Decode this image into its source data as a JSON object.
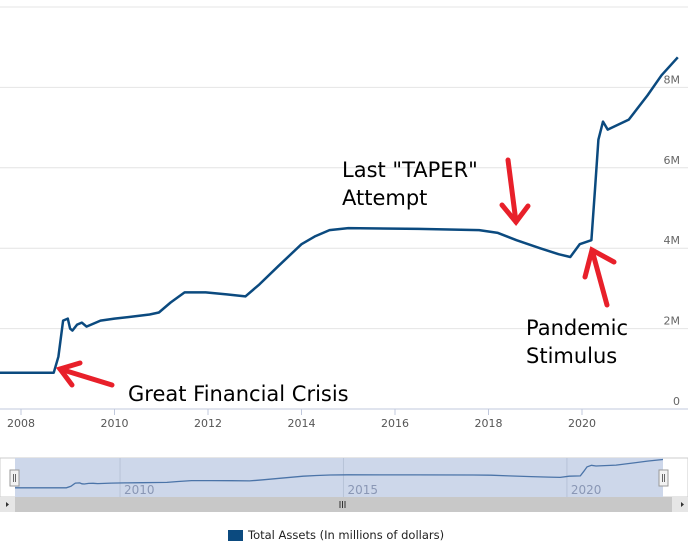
{
  "chart_data": {
    "type": "line",
    "title": "",
    "xlabel": "",
    "ylabel": "",
    "xlim": [
      2007.55,
      2022.05
    ],
    "ylim": [
      0,
      10
    ],
    "x_ticks": [
      "2008",
      "2010",
      "2012",
      "2014",
      "2016",
      "2018",
      "2020"
    ],
    "y_ticks": [
      "0",
      "2M",
      "4M",
      "6M",
      "8M"
    ],
    "grid": true,
    "legend_position": "bottom",
    "series": [
      {
        "name": "Total Assets (In millions of dollars)",
        "color": "#0b4a7f",
        "unit": "millions of millions (M = trillion $)",
        "points": [
          [
            2007.55,
            0.9
          ],
          [
            2008.7,
            0.9
          ],
          [
            2008.8,
            1.3
          ],
          [
            2008.9,
            2.2
          ],
          [
            2009.0,
            2.25
          ],
          [
            2009.05,
            2.0
          ],
          [
            2009.1,
            1.95
          ],
          [
            2009.2,
            2.1
          ],
          [
            2009.3,
            2.15
          ],
          [
            2009.4,
            2.05
          ],
          [
            2009.7,
            2.2
          ],
          [
            2010.0,
            2.25
          ],
          [
            2010.4,
            2.3
          ],
          [
            2010.75,
            2.35
          ],
          [
            2010.95,
            2.4
          ],
          [
            2011.2,
            2.65
          ],
          [
            2011.5,
            2.9
          ],
          [
            2011.95,
            2.9
          ],
          [
            2012.4,
            2.85
          ],
          [
            2012.8,
            2.8
          ],
          [
            2013.1,
            3.1
          ],
          [
            2013.5,
            3.55
          ],
          [
            2014.0,
            4.1
          ],
          [
            2014.3,
            4.3
          ],
          [
            2014.6,
            4.45
          ],
          [
            2015.0,
            4.5
          ],
          [
            2016.5,
            4.48
          ],
          [
            2017.8,
            4.45
          ],
          [
            2018.2,
            4.38
          ],
          [
            2018.6,
            4.2
          ],
          [
            2019.1,
            4.0
          ],
          [
            2019.5,
            3.85
          ],
          [
            2019.75,
            3.78
          ],
          [
            2019.95,
            4.1
          ],
          [
            2020.2,
            4.2
          ],
          [
            2020.28,
            5.5
          ],
          [
            2020.35,
            6.7
          ],
          [
            2020.45,
            7.15
          ],
          [
            2020.55,
            6.95
          ],
          [
            2021.0,
            7.2
          ],
          [
            2021.4,
            7.8
          ],
          [
            2021.7,
            8.3
          ],
          [
            2022.05,
            8.75
          ]
        ]
      }
    ],
    "annotations": [
      {
        "text": "Great Financial Crisis"
      },
      {
        "text_line1": "Last \"TAPER\"",
        "text_line2": "Attempt"
      },
      {
        "text_line1": "Pandemic",
        "text_line2": "Stimulus"
      }
    ],
    "navigator": {
      "ticks": [
        "2010",
        "2015",
        "2020"
      ]
    }
  }
}
